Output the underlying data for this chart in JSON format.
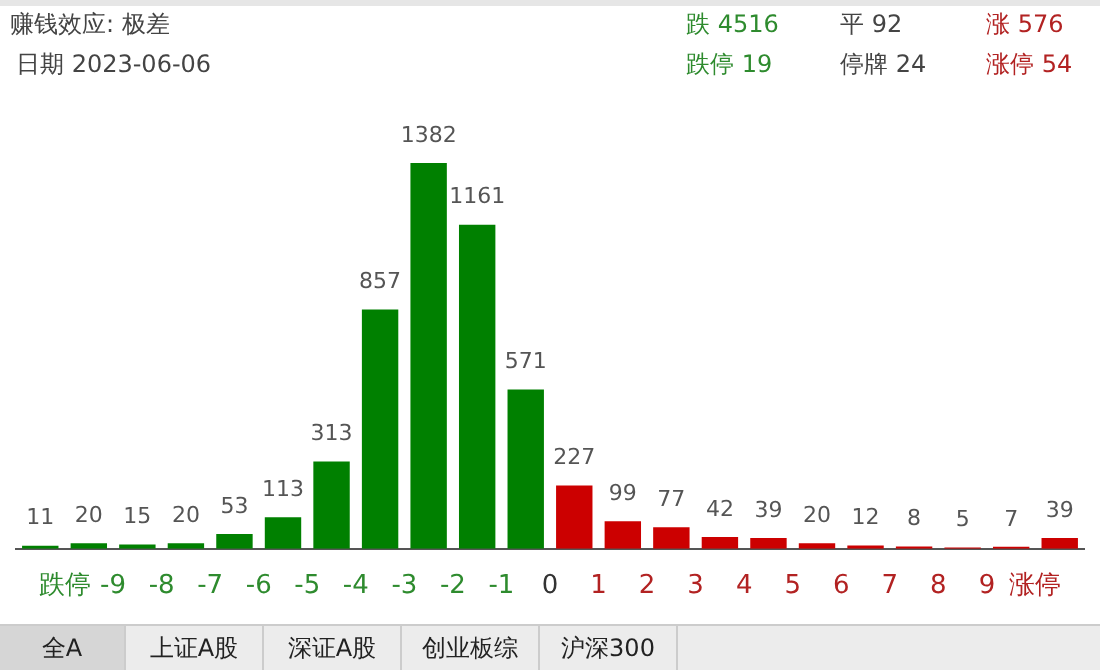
{
  "chart_data": {
    "type": "bar",
    "title": "赚钱效应: 极差",
    "subtitle": "日期 2023-06-06",
    "annotations": [
      "跌 4516",
      "平 92",
      "涨 576",
      "跌停 19",
      "停牌 24",
      "涨停 54",
      "全A",
      "上证A股",
      "深证A股",
      "创业板综",
      "沪深300"
    ],
    "x": [
      -10.5,
      -9.5,
      -8.5,
      -7.5,
      -6.5,
      -5.5,
      -4.5,
      -3.5,
      -2.5,
      -1.5,
      -0.5,
      0.5,
      1.5,
      2.5,
      3.5,
      4.5,
      5.5,
      6.5,
      7.5,
      8.5,
      9.5,
      10.5
    ],
    "values": [
      11,
      20,
      15,
      20,
      53,
      113,
      313,
      857,
      1382,
      1161,
      571,
      227,
      99,
      77,
      42,
      39,
      20,
      12,
      8,
      5,
      7,
      39
    ],
    "colors": [
      "#008000",
      "#008000",
      "#008000",
      "#008000",
      "#008000",
      "#008000",
      "#008000",
      "#008000",
      "#008000",
      "#008000",
      "#008000",
      "#cc0000",
      "#cc0000",
      "#cc0000",
      "#cc0000",
      "#cc0000",
      "#cc0000",
      "#cc0000",
      "#cc0000",
      "#cc0000",
      "#cc0000",
      "#cc0000"
    ],
    "xlim": [
      -11,
      11
    ],
    "xticks": [
      {
        "value": -10,
        "label": "跌停"
      },
      -9,
      -8,
      -7,
      -6,
      -5,
      -4,
      -3,
      -2,
      -1,
      0,
      1,
      2,
      3,
      4,
      5,
      6,
      7,
      8,
      9,
      {
        "value": 10,
        "label": "涨停"
      }
    ],
    "data_labels": true,
    "grid": false,
    "legend": false
  }
}
